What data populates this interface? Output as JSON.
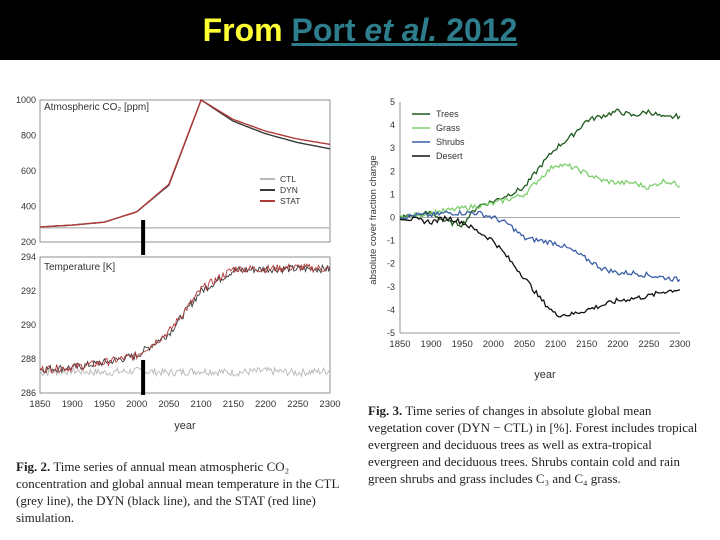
{
  "header": {
    "prefix": "From ",
    "link_main": "Port ",
    "link_ital": "et al.",
    "link_year": " 2012"
  },
  "fig2": {
    "co2_label": "Atmospheric CO₂ [ppm]",
    "temp_label": "Temperature [K]",
    "co2_ticks": [
      "1000",
      "800",
      "600",
      "400",
      "200"
    ],
    "temp_ticks": [
      "294",
      "292",
      "290",
      "288",
      "286"
    ],
    "x_ticks": [
      "1850",
      "1900",
      "1950",
      "2000",
      "2050",
      "2100",
      "2150",
      "2200",
      "2250",
      "2300"
    ],
    "xlabel": "year",
    "legend": [
      "CTL",
      "DYN",
      "STAT"
    ],
    "caption_label": "Fig. 2.",
    "caption_text": " Time series of annual mean atmospheric CO₂ concentration and global annual mean temperature in the CTL (grey line), the DYN (black line), and the STAT (red line) simulation."
  },
  "fig3": {
    "ylabel": "absolute cover fraction change",
    "xlabel": "year",
    "y_ticks": [
      "5",
      "4",
      "3",
      "2",
      "1",
      "0",
      "-1",
      "-2",
      "-3",
      "-4",
      "-5"
    ],
    "x_ticks": [
      "1850",
      "1900",
      "1950",
      "2000",
      "2050",
      "2100",
      "2150",
      "2200",
      "2250",
      "2300"
    ],
    "legend": [
      {
        "name": "Trees",
        "color": "#1e5a1e"
      },
      {
        "name": "Grass",
        "color": "#7fcf6f"
      },
      {
        "name": "Shrubs",
        "color": "#3a5fa8"
      },
      {
        "name": "Desert",
        "color": "#111111"
      }
    ],
    "caption_label": "Fig. 3.",
    "caption_text": " Time series of changes in absolute global mean vegetation cover (DYN − CTL) in [%]. Forest includes tropical evergreen and deciduous trees as well as extra-tropical evergreen and deciduous trees. Shrubs contain cold and rain green shrubs and grass includes C₃ and C₄ grass."
  },
  "chart_data": [
    {
      "type": "line",
      "title": "",
      "ylabel": "Atmospheric CO2 [ppm]",
      "xlabel": "year",
      "xlim": [
        1850,
        2300
      ],
      "ylim": [
        200,
        1000
      ],
      "x": [
        1850,
        1900,
        1950,
        2000,
        2050,
        2100,
        2150,
        2200,
        2250,
        2300
      ],
      "series": [
        {
          "name": "CTL",
          "values": [
            280,
            280,
            280,
            280,
            280,
            280,
            280,
            280,
            280,
            280
          ]
        },
        {
          "name": "DYN",
          "values": [
            285,
            295,
            312,
            370,
            520,
            1000,
            880,
            810,
            760,
            725
          ]
        },
        {
          "name": "STAT",
          "values": [
            285,
            295,
            312,
            370,
            525,
            1000,
            890,
            825,
            780,
            750
          ]
        }
      ]
    },
    {
      "type": "line",
      "title": "",
      "ylabel": "Temperature [K]",
      "xlabel": "year",
      "xlim": [
        1850,
        2300
      ],
      "ylim": [
        286,
        294
      ],
      "x": [
        1850,
        1900,
        1950,
        2000,
        2050,
        2100,
        2150,
        2200,
        2250,
        2300
      ],
      "series": [
        {
          "name": "CTL",
          "values": [
            287.2,
            287.3,
            287.2,
            287.3,
            287.2,
            287.3,
            287.2,
            287.3,
            287.2,
            287.3
          ]
        },
        {
          "name": "DYN",
          "values": [
            287.4,
            287.5,
            287.8,
            288.2,
            289.5,
            292.0,
            293.2,
            293.3,
            293.3,
            293.3
          ]
        },
        {
          "name": "STAT",
          "values": [
            287.4,
            287.5,
            287.8,
            288.2,
            289.6,
            292.1,
            293.3,
            293.3,
            293.4,
            293.3
          ]
        }
      ]
    },
    {
      "type": "line",
      "title": "",
      "ylabel": "absolute cover fraction change",
      "xlabel": "year",
      "xlim": [
        1850,
        2300
      ],
      "ylim": [
        -5,
        5
      ],
      "x": [
        1850,
        1875,
        1900,
        1925,
        1950,
        1975,
        2000,
        2025,
        2050,
        2075,
        2100,
        2125,
        2150,
        2175,
        2200,
        2225,
        2250,
        2275,
        2300
      ],
      "series": [
        {
          "name": "Trees",
          "values": [
            0,
            0.1,
            0.2,
            -0.2,
            -0.3,
            0.5,
            0.7,
            1.0,
            1.3,
            2.2,
            3.0,
            3.5,
            4.2,
            4.4,
            4.6,
            4.4,
            4.6,
            4.3,
            4.4
          ]
        },
        {
          "name": "Grass",
          "values": [
            0,
            0.1,
            0.2,
            0.3,
            0.4,
            0.5,
            0.6,
            0.8,
            1.0,
            1.7,
            2.3,
            2.2,
            1.9,
            1.6,
            1.5,
            1.5,
            1.3,
            1.6,
            1.4
          ]
        },
        {
          "name": "Shrubs",
          "values": [
            0,
            0.1,
            0.1,
            0.2,
            0.2,
            0.2,
            0,
            -0.3,
            -0.9,
            -1.0,
            -1.1,
            -1.4,
            -1.8,
            -2.2,
            -2.4,
            -2.4,
            -2.5,
            -2.6,
            -2.7
          ]
        },
        {
          "name": "Desert",
          "values": [
            0,
            -0.1,
            -0.2,
            0,
            -0.2,
            -0.6,
            -1.0,
            -1.8,
            -2.6,
            -3.5,
            -4.2,
            -4.2,
            -4.0,
            -3.8,
            -3.6,
            -3.5,
            -3.4,
            -3.2,
            -3.1
          ]
        }
      ]
    }
  ]
}
